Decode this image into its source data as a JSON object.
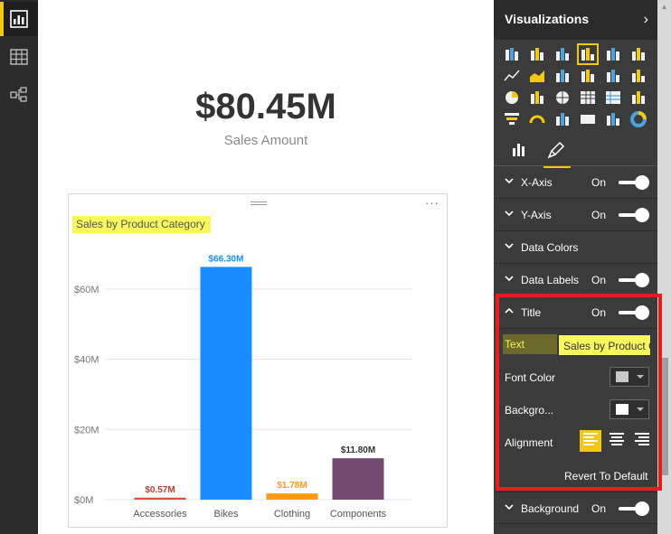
{
  "nav": {
    "items": [
      {
        "name": "report-view",
        "icon": "bar-chart-icon",
        "active": true
      },
      {
        "name": "data-view",
        "icon": "table-icon",
        "active": false
      },
      {
        "name": "relationships-view",
        "icon": "relationships-icon",
        "active": false
      }
    ]
  },
  "card": {
    "value": "$80.45M",
    "label": "Sales Amount"
  },
  "chart_visual": {
    "more_label": "···"
  },
  "chart_data": {
    "type": "bar",
    "title": "Sales by Product Category",
    "categories": [
      "Accessories",
      "Bikes",
      "Clothing",
      "Components"
    ],
    "values": [
      0.57,
      66.3,
      1.78,
      11.8
    ],
    "data_labels": [
      "$0.57M",
      "$66.30M",
      "$1.78M",
      "$11.80M"
    ],
    "bar_colors": [
      "#e04b3b",
      "#198cff",
      "#ff9a1a",
      "#744a72"
    ],
    "label_colors": [
      "#c43b2e",
      "#198cff",
      "#ff9a1a",
      "#333333"
    ],
    "yticks": [
      0,
      20,
      40,
      60
    ],
    "ytick_labels": [
      "$0M",
      "$20M",
      "$40M",
      "$60M"
    ],
    "ylim": [
      0,
      70
    ],
    "grid": true,
    "xlabel": "",
    "ylabel": ""
  },
  "pane": {
    "title": "Visualizations",
    "collapse_icon": "›",
    "viz_icons": [
      "stacked-bar-icon",
      "stacked-column-icon",
      "clustered-bar-icon",
      "clustered-column-icon",
      "100-bar-icon",
      "100-column-icon",
      "line-icon",
      "area-icon",
      "stacked-area-icon",
      "line-column-icon",
      "line-clustered-icon",
      "ribbon-icon",
      "pie-icon",
      "treemap-icon",
      "map-icon",
      "table-icon",
      "matrix-icon",
      "filled-map-icon",
      "funnel-icon",
      "gauge-icon",
      "multi-row-card-icon",
      "card-icon",
      "slicer-icon",
      "donut-icon"
    ],
    "selected_viz_index": 3,
    "tabs": [
      {
        "name": "fields-tab",
        "icon": "fields-icon",
        "active": false
      },
      {
        "name": "format-tab",
        "icon": "paint-roller-icon",
        "active": true
      }
    ],
    "sections": [
      {
        "label": "X-Axis",
        "state": "On",
        "toggle": true,
        "expanded": false
      },
      {
        "label": "Y-Axis",
        "state": "On",
        "toggle": true,
        "expanded": false
      },
      {
        "label": "Data Colors",
        "state": "",
        "toggle": false,
        "expanded": false
      },
      {
        "label": "Data Labels",
        "state": "On",
        "toggle": true,
        "expanded": false
      },
      {
        "label": "Title",
        "state": "On",
        "toggle": true,
        "expanded": true
      }
    ],
    "title_format": {
      "text_label": "Text",
      "text_value": "Sales by Product Category",
      "font_color_label": "Font Color",
      "font_color": "#c8c8c8",
      "background_label": "Backgro...",
      "background_color": "#ffffff",
      "alignment_label": "Alignment",
      "alignment_options": [
        "align-left-icon",
        "align-center-icon",
        "align-right-icon"
      ],
      "alignment_selected": 0,
      "revert_label": "Revert To Default"
    },
    "background_section": {
      "label": "Background",
      "state": "On",
      "toggle": true
    }
  },
  "colors": {
    "accent": "#f2c811",
    "highlight": "#e81c1c",
    "pane_bg": "#3b3b3b",
    "nav_bg": "#2b2b2b"
  }
}
